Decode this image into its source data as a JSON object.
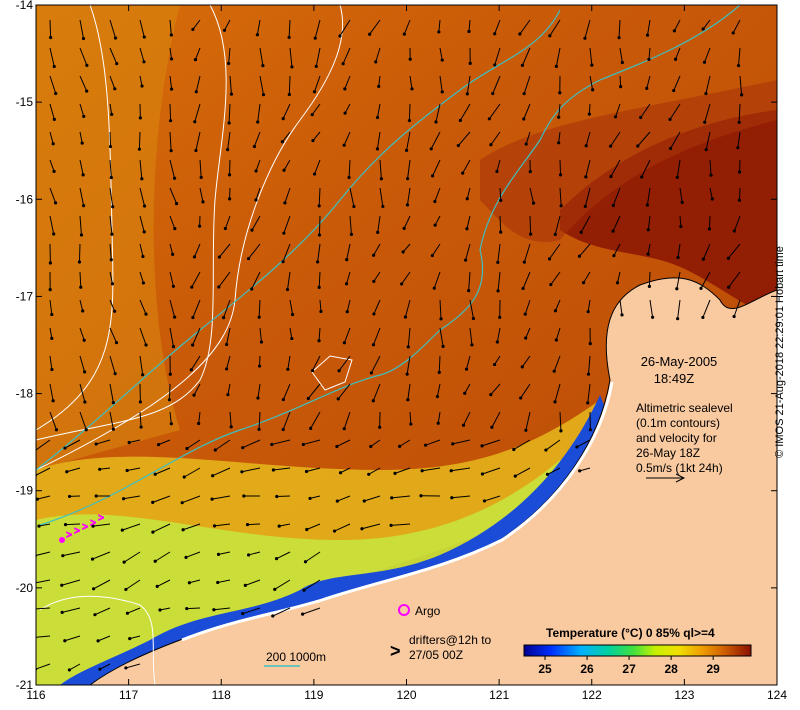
{
  "map": {
    "date": "26-May-2005",
    "time": "18:49Z",
    "annotation_lines": [
      "Altimetric sealevel",
      "(0.1m contours)",
      "and velocity for",
      "26-May 18Z",
      "0.5m/s (1kt 24h)"
    ],
    "x_ticks": [
      "116",
      "117",
      "118",
      "119",
      "120",
      "121",
      "122",
      "123",
      "124"
    ],
    "y_ticks": [
      "-14",
      "-15",
      "-16",
      "-17",
      "-18",
      "-19",
      "-20",
      "-21"
    ],
    "x_tick_values": [
      116,
      117,
      118,
      119,
      120,
      121,
      122,
      123,
      124
    ],
    "y_tick_values": [
      -14,
      -15,
      -16,
      -17,
      -18,
      -19,
      -20,
      -21
    ],
    "lon_range": [
      116,
      124
    ],
    "lat_range": [
      -21,
      -14
    ],
    "argo_label": "Argo",
    "drifters_label_line1": "drifters@12h to",
    "drifters_label_line2": "27/05 00Z",
    "drifter_symbol": ">",
    "bathy_label": "200  1000m",
    "colorbar_title": "Temperature (°C) 0 85% ql>=4",
    "colorbar_ticks": [
      "25",
      "26",
      "27",
      "28",
      "29"
    ],
    "colorbar_tick_values": [
      25,
      26,
      27,
      28,
      29
    ],
    "colorbar_range": [
      24.5,
      29.9
    ],
    "credit": "© IMOS 21-Aug-2018 22:29:01 Hobart time",
    "colors": {
      "land": "#f9c9a0",
      "ocean_warm": "#cc5a0a",
      "ocean_hot": "#8a1504",
      "cool_green": "#c8e23c",
      "coast_blue": "#1a4cd8",
      "contour_cyan": "#3fbfbf",
      "contour_white": "#ffffff",
      "argo": "#ff00ff",
      "drifter": "#ff00ff"
    }
  }
}
